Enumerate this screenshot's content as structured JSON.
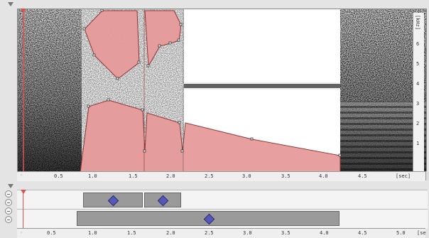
{
  "spectrogram": {
    "freq_unit": "[kHz]",
    "freq_ticks": [
      "6",
      "5",
      "4",
      "3",
      "2",
      "1"
    ]
  },
  "time_axis": {
    "unit": "[sec]",
    "ticks_top": [
      "0.5",
      "1.0",
      "1.5",
      "2.0",
      "2.5",
      "3.0",
      "3.5",
      "4.0",
      "4.5"
    ],
    "ticks_bottom": [
      "0.5",
      "1.0",
      "1.5",
      "2.0",
      "2.5",
      "3.0",
      "3.5",
      "4.0",
      "4.5",
      "5.0"
    ],
    "unit_bottom": "[se"
  },
  "colors": {
    "region_fill": "#e79a9a",
    "region_stroke": "#8a3030",
    "diamond": "#5658b8",
    "cursor": "#e05050"
  },
  "tracks": {
    "row1_regions": 2,
    "row2_regions": 1
  }
}
